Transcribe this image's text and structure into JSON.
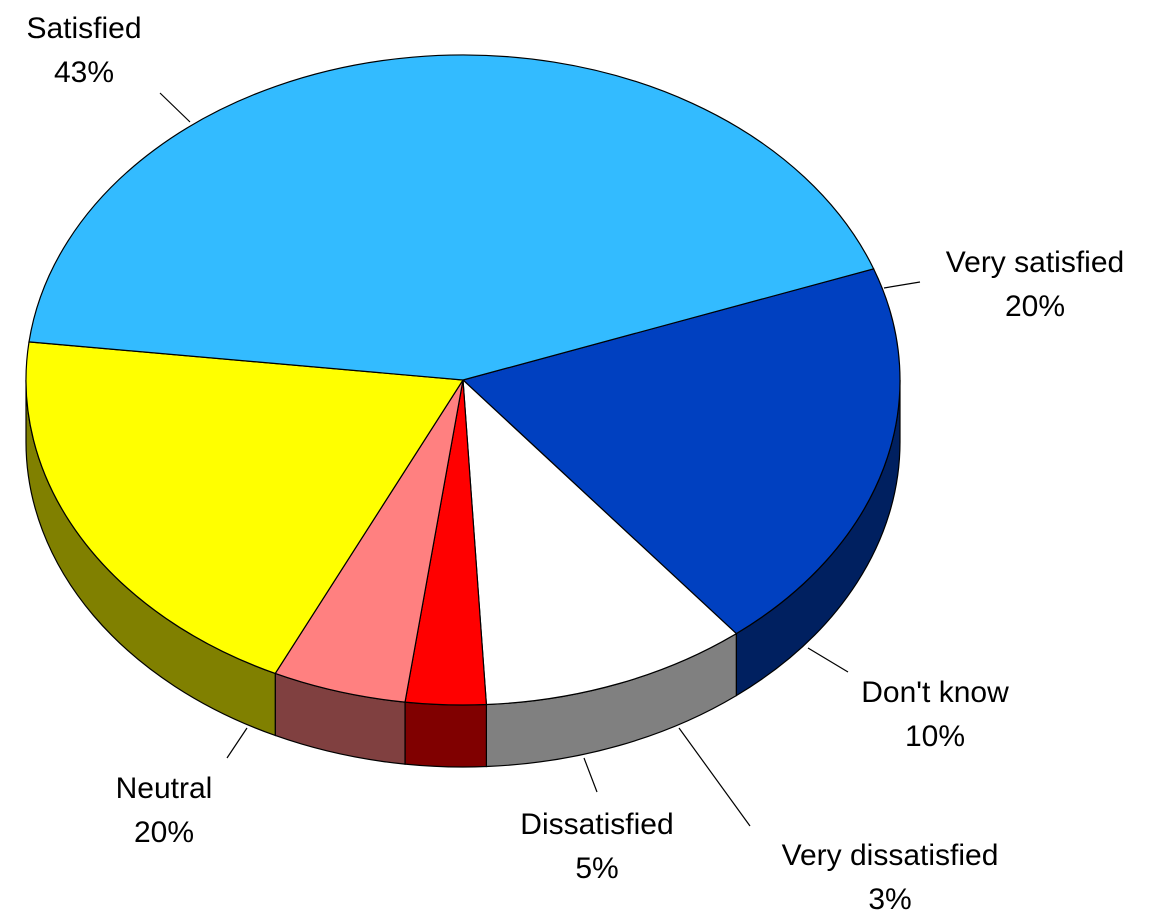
{
  "chart_data": {
    "type": "pie",
    "style": "3d",
    "title": "",
    "slices": [
      {
        "label": "Very satisfied",
        "percent_label": "20%",
        "value": 20,
        "color": "#0040C0",
        "side_color": "#002060"
      },
      {
        "label": "Don't know",
        "percent_label": "10%",
        "value": 10,
        "color": "#FFFFFF",
        "side_color": "#808080"
      },
      {
        "label": "Very dissatisfied",
        "percent_label": "3%",
        "value": 3,
        "color": "#FF0000",
        "side_color": "#800000"
      },
      {
        "label": "Dissatisfied",
        "percent_label": "5%",
        "value": 5,
        "color": "#FF8080",
        "side_color": "#804040"
      },
      {
        "label": "Neutral",
        "percent_label": "20%",
        "value": 20,
        "color": "#FFFF00",
        "side_color": "#808000"
      },
      {
        "label": "Satisfied",
        "percent_label": "43%",
        "value": 43,
        "color": "#33BBFF",
        "side_color": "#1A5E80"
      }
    ]
  }
}
